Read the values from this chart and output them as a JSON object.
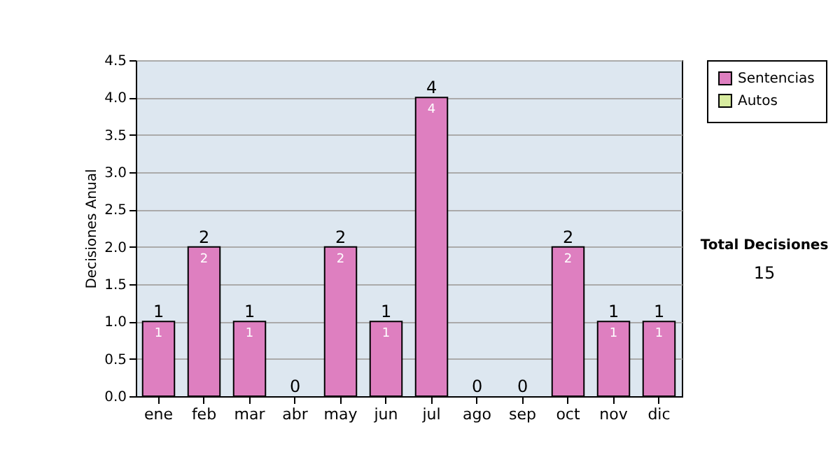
{
  "chart_data": {
    "type": "bar",
    "ylabel": "Decisiones Anual",
    "categories": [
      "ene",
      "feb",
      "mar",
      "abr",
      "may",
      "jun",
      "jul",
      "ago",
      "sep",
      "oct",
      "nov",
      "dic"
    ],
    "stacked": true,
    "series": [
      {
        "name": "Sentencias",
        "color": "#de7fc0",
        "values": [
          1,
          2,
          1,
          0,
          2,
          1,
          4,
          0,
          0,
          2,
          1,
          1
        ],
        "value_labels": [
          "1",
          "2",
          "1",
          null,
          "2",
          "1",
          "4",
          null,
          null,
          "2",
          "1",
          "1"
        ]
      },
      {
        "name": "Autos",
        "color": "#d8eca0",
        "values": [
          0,
          0,
          0,
          0,
          0,
          0,
          0,
          0,
          0,
          0,
          0,
          0
        ]
      }
    ],
    "totals": [
      "1",
      "2",
      "1",
      "0",
      "2",
      "1",
      "4",
      "0",
      "0",
      "2",
      "1",
      "1"
    ],
    "ylim": [
      0,
      4.5
    ],
    "yticks": [
      {
        "value": 0,
        "label": "0.0"
      },
      {
        "value": 0.5,
        "label": "0.5"
      },
      {
        "value": 1,
        "label": "1.0"
      },
      {
        "value": 1.5,
        "label": "1.5"
      },
      {
        "value": 2,
        "label": "2.0"
      },
      {
        "value": 2.5,
        "label": "2.5"
      },
      {
        "value": 3,
        "label": "3.0"
      },
      {
        "value": 3.5,
        "label": "3.5"
      },
      {
        "value": 4,
        "label": "4.0"
      },
      {
        "value": 4.5,
        "label": "4.5"
      }
    ],
    "grid": "y",
    "legend": "right",
    "annotations": [
      "Total Decisiones",
      "15"
    ]
  }
}
